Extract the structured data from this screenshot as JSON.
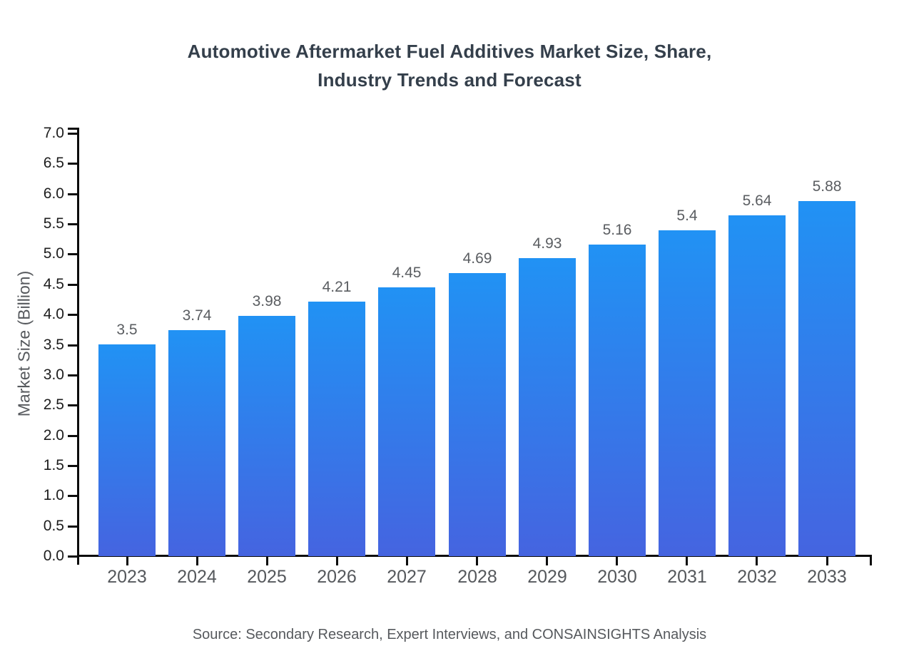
{
  "title": {
    "line1": "Automotive Aftermarket Fuel Additives Market Size, Share,",
    "line2": "Industry Trends and Forecast"
  },
  "source": "Source: Secondary Research, Expert Interviews, and CONSAINSIGHTS Analysis",
  "chart_data": {
    "type": "bar",
    "title": "Automotive Aftermarket Fuel Additives Market Size, Share, Industry Trends and Forecast",
    "xlabel": "",
    "ylabel": "Market Size (Billion)",
    "categories": [
      "2023",
      "2024",
      "2025",
      "2026",
      "2027",
      "2028",
      "2029",
      "2030",
      "2031",
      "2032",
      "2033"
    ],
    "values": [
      3.5,
      3.74,
      3.98,
      4.21,
      4.45,
      4.69,
      4.93,
      5.16,
      5.4,
      5.64,
      5.88
    ],
    "data_labels": [
      "3.5",
      "3.74",
      "3.98",
      "4.21",
      "4.45",
      "4.69",
      "4.93",
      "5.16",
      "5.4",
      "5.64",
      "5.88"
    ],
    "ylim": [
      0.0,
      7.0
    ],
    "ytick_step": 0.5,
    "grid": false,
    "legend": "none",
    "colors": {
      "bar_gradient_top": "#2192f4",
      "bar_gradient_bottom": "#4564e0",
      "axis": "#0c0c0c",
      "title_text": "#343f4b",
      "ytick_text": "#1d1d1d",
      "xtick_text": "#55585c",
      "value_label_text": "#5a5d61",
      "source_text": "#56595d"
    }
  }
}
